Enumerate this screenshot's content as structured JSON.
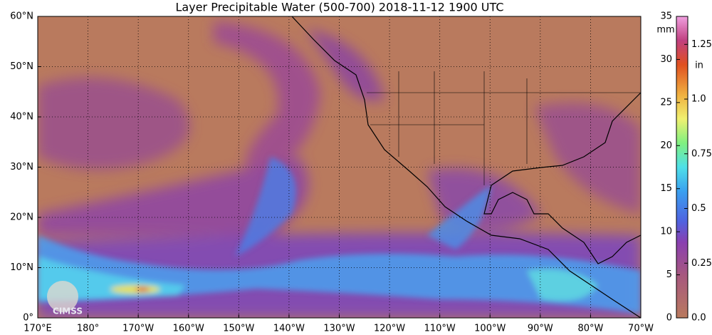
{
  "title": "Layer Precipitable Water (500-700)  2018-11-12 1900 UTC",
  "map": {
    "xlim": [
      170,
      290
    ],
    "xticks": [
      {
        "value": 170,
        "label": "170°E"
      },
      {
        "value": 180,
        "label": "180°"
      },
      {
        "value": 190,
        "label": "170°W"
      },
      {
        "value": 200,
        "label": "160°W"
      },
      {
        "value": 210,
        "label": "150°W"
      },
      {
        "value": 220,
        "label": "140°W"
      },
      {
        "value": 230,
        "label": "130°W"
      },
      {
        "value": 240,
        "label": "120°W"
      },
      {
        "value": 250,
        "label": "110°W"
      },
      {
        "value": 260,
        "label": "100°W"
      },
      {
        "value": 270,
        "label": "90°W"
      },
      {
        "value": 280,
        "label": "80°W"
      },
      {
        "value": 290,
        "label": "70°W"
      }
    ],
    "ylim": [
      0,
      60
    ],
    "yticks": [
      {
        "value": 0,
        "label": "0°"
      },
      {
        "value": 10,
        "label": "10°N"
      },
      {
        "value": 20,
        "label": "20°N"
      },
      {
        "value": 30,
        "label": "30°N"
      },
      {
        "value": 40,
        "label": "40°N"
      },
      {
        "value": 50,
        "label": "50°N"
      },
      {
        "value": 60,
        "label": "60°N"
      }
    ]
  },
  "colorbar": {
    "unit": "mm",
    "lim": [
      0,
      35
    ],
    "ticks": [
      0,
      5,
      10,
      15,
      20,
      25,
      30,
      35
    ],
    "unit2": "in",
    "ticks2": [
      {
        "value": 0,
        "label": "0.0"
      },
      {
        "value": 0.25,
        "label": "0.25"
      },
      {
        "value": 0.5,
        "label": "0.5"
      },
      {
        "value": 0.75,
        "label": "0.75"
      },
      {
        "value": 1,
        "label": "1.0"
      },
      {
        "value": 1.25,
        "label": "1.25"
      }
    ]
  },
  "logo": "CIMSS"
}
